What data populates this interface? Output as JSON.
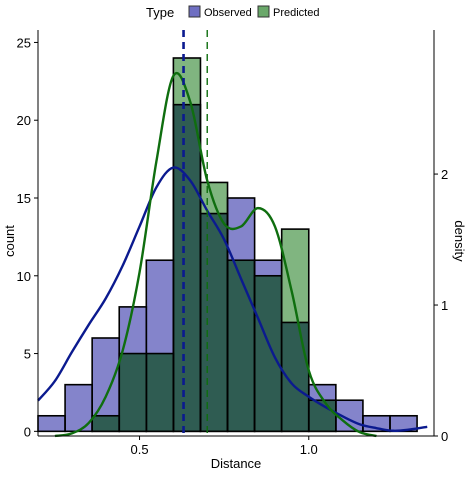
{
  "chart_data": {
    "type": "bar",
    "title": "",
    "xlabel": "Distance",
    "ylabel": "count",
    "y2label": "density",
    "xlim": [
      0.2,
      1.37
    ],
    "ylim": [
      -0.3,
      25.8
    ],
    "y2lim": [
      0,
      3.1
    ],
    "x_ticks": [
      0.5,
      1.0
    ],
    "x_tick_labels": [
      "0.5",
      "1.0"
    ],
    "y_ticks": [
      0,
      5,
      10,
      15,
      20,
      25
    ],
    "y_tick_labels": [
      "0",
      "5",
      "10",
      "15",
      "20",
      "25"
    ],
    "y2_ticks": [
      0,
      1,
      2
    ],
    "y2_tick_labels": [
      "0",
      "1",
      "2"
    ],
    "grid": false,
    "legend": {
      "title": "Type",
      "position": "top",
      "entries": [
        "Observed",
        "Predicted"
      ]
    },
    "bin_edges": [
      0.2,
      0.28,
      0.36,
      0.44,
      0.52,
      0.6,
      0.68,
      0.76,
      0.84,
      0.92,
      1.0,
      1.08,
      1.16,
      1.24,
      1.32
    ],
    "series": [
      {
        "name": "Observed",
        "fill": "#6f6fc2",
        "line_color": "#0b1a8f",
        "counts": [
          1,
          3,
          6,
          8,
          11,
          21,
          14,
          15,
          11,
          7,
          3,
          2,
          1,
          1
        ],
        "mean": 0.63,
        "density_x": [
          0.2,
          0.25,
          0.3,
          0.35,
          0.4,
          0.45,
          0.5,
          0.55,
          0.6,
          0.65,
          0.7,
          0.75,
          0.8,
          0.85,
          0.9,
          0.95,
          1.0,
          1.05,
          1.1,
          1.15,
          1.2,
          1.25,
          1.3,
          1.35
        ],
        "density_y": [
          0.27,
          0.42,
          0.64,
          0.85,
          1.05,
          1.3,
          1.6,
          1.9,
          2.05,
          1.95,
          1.72,
          1.5,
          1.2,
          0.9,
          0.6,
          0.4,
          0.3,
          0.22,
          0.15,
          0.09,
          0.06,
          0.04,
          0.05,
          0.07
        ]
      },
      {
        "name": "Predicted",
        "fill": "#6aa86a",
        "line_color": "#0f6e0f",
        "counts": [
          0,
          0,
          1,
          5,
          5,
          24,
          16,
          11,
          10,
          13,
          2,
          0,
          0,
          0
        ],
        "mean": 0.7,
        "density_x": [
          0.25,
          0.3,
          0.35,
          0.4,
          0.45,
          0.5,
          0.55,
          0.6,
          0.65,
          0.7,
          0.75,
          0.8,
          0.85,
          0.9,
          0.95,
          1.0,
          1.05,
          1.1,
          1.15,
          1.2
        ],
        "density_y": [
          0.0,
          0.02,
          0.1,
          0.3,
          0.65,
          1.25,
          2.1,
          2.75,
          2.55,
          1.95,
          1.62,
          1.6,
          1.74,
          1.6,
          1.1,
          0.5,
          0.25,
          0.12,
          0.03,
          0.0
        ]
      }
    ],
    "overlap_fill": "#2f5c52"
  }
}
